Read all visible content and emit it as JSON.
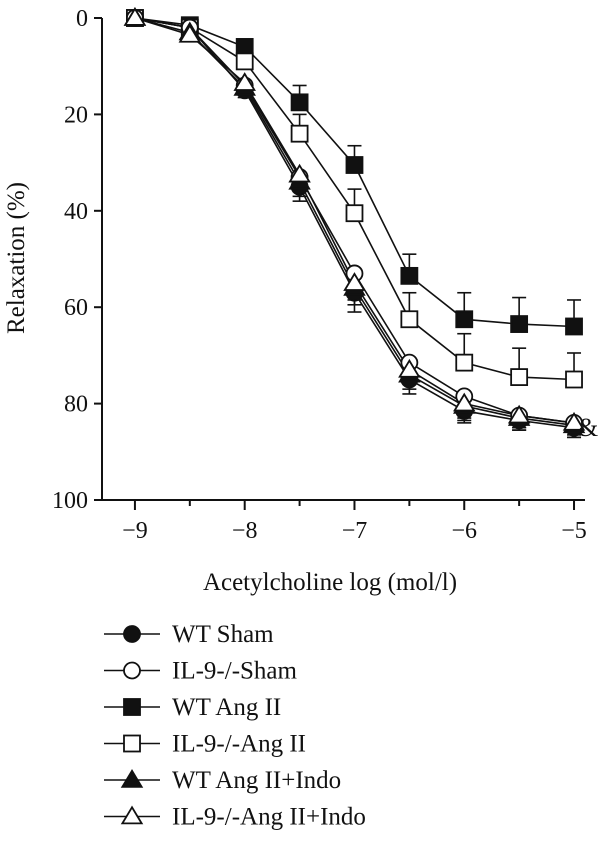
{
  "chart_data": {
    "type": "line",
    "xlabel": "Acetylcholine log (mol/l)",
    "ylabel": "Relaxation (%)",
    "x": [
      -9,
      -8.5,
      -8,
      -7.5,
      -7,
      -6.5,
      -6,
      -5.5,
      -5
    ],
    "xlim": [
      -9.3,
      -4.9
    ],
    "ylim": [
      0,
      100
    ],
    "y_inverted": true,
    "x_ticks": [
      -9,
      -8,
      -7,
      -6,
      -5
    ],
    "x_tick_labels": [
      "−9",
      "−8",
      "−7",
      "−6",
      "−5"
    ],
    "y_ticks": [
      0,
      20,
      40,
      60,
      80,
      100
    ],
    "y_tick_labels": [
      "0",
      "20",
      "40",
      "60",
      "80",
      "100"
    ],
    "grid": false,
    "legend_position": "bottom",
    "annotation": "&",
    "series": [
      {
        "name": "WT Sham",
        "marker": "circle",
        "filled": true,
        "values": [
          0,
          2,
          15,
          35,
          57,
          75,
          81.5,
          83.5,
          85
        ],
        "errors": [
          0,
          0.5,
          1.5,
          3,
          4,
          3,
          2.5,
          2,
          2
        ]
      },
      {
        "name": "IL-9-/-Sham",
        "marker": "circle",
        "filled": false,
        "values": [
          0,
          2,
          14,
          33,
          53,
          71.5,
          78.5,
          82.5,
          84
        ],
        "errors": [
          0,
          0.5,
          1.5,
          3,
          4,
          4,
          3,
          2.5,
          2
        ]
      },
      {
        "name": "WT Ang II",
        "marker": "square",
        "filled": true,
        "values": [
          0,
          1.5,
          6,
          17.5,
          30.5,
          53.5,
          62.5,
          63.5,
          64
        ],
        "errors": [
          0,
          0.5,
          1,
          3.5,
          4,
          4.5,
          5.5,
          5.5,
          5.5
        ]
      },
      {
        "name": "IL-9-/-Ang II",
        "marker": "square",
        "filled": false,
        "values": [
          0,
          2,
          9,
          24,
          40.5,
          62.5,
          71.5,
          74.5,
          75
        ],
        "errors": [
          0,
          0.5,
          1.5,
          4,
          5,
          5.5,
          6,
          6,
          5.5
        ]
      },
      {
        "name": "WT Ang II+Indo",
        "marker": "triangle",
        "filled": true,
        "values": [
          0,
          3,
          14.5,
          34,
          56,
          74,
          80.5,
          83,
          84.5
        ],
        "errors": [
          0,
          0.5,
          1.5,
          3,
          3.5,
          3,
          3,
          2.5,
          2.5
        ]
      },
      {
        "name": "IL-9-/-Ang II+Indo",
        "marker": "triangle",
        "filled": false,
        "values": [
          0,
          3.5,
          13.5,
          32.5,
          55,
          73,
          80,
          82.5,
          84
        ],
        "errors": [
          0,
          0.5,
          1.5,
          3,
          3.5,
          3,
          3,
          2.5,
          2.5
        ]
      }
    ]
  }
}
